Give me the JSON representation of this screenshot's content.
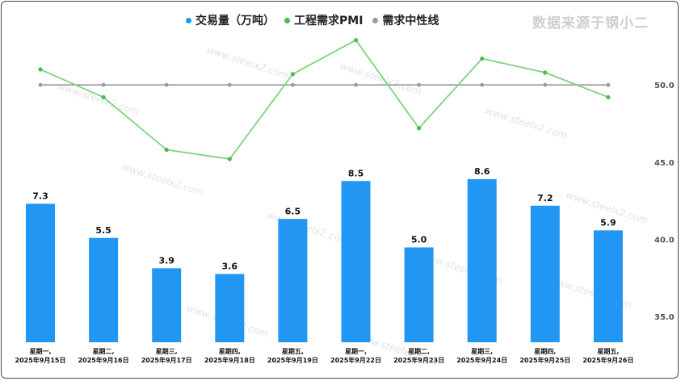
{
  "source_note": "数据来源于钢小二",
  "watermark": "www.steelx2.com",
  "legend": [
    {
      "label": "交易量（万吨）",
      "color": "#2196f3"
    },
    {
      "label": "工程需求PMI",
      "color": "#4cbb4c"
    },
    {
      "label": "需求中性线",
      "color": "#999999"
    }
  ],
  "chart_data": {
    "type": "bar",
    "categories": [
      [
        "星期一,",
        "2025年9月15日"
      ],
      [
        "星期二,",
        "2025年9月16日"
      ],
      [
        "星期三,",
        "2025年9月17日"
      ],
      [
        "星期四,",
        "2025年9月18日"
      ],
      [
        "星期五,",
        "2025年9月19日"
      ],
      [
        "星期一,",
        "2025年9月22日"
      ],
      [
        "星期二,",
        "2025年9月23日"
      ],
      [
        "星期三,",
        "2025年9月24日"
      ],
      [
        "星期四,",
        "2025年9月25日"
      ],
      [
        "星期五,",
        "2025年9月26日"
      ]
    ],
    "series": [
      {
        "name": "交易量（万吨）",
        "type": "bar",
        "values": [
          7.3,
          5.5,
          3.9,
          3.6,
          6.5,
          8.5,
          5.0,
          8.6,
          7.2,
          5.9
        ],
        "color": "#2196f3"
      },
      {
        "name": "工程需求PMI",
        "type": "line",
        "values": [
          51.0,
          49.2,
          45.8,
          45.2,
          50.7,
          52.9,
          47.2,
          51.7,
          50.8,
          49.2
        ],
        "color": "#7ed37e"
      },
      {
        "name": "需求中性线",
        "type": "line",
        "values": [
          50,
          50,
          50,
          50,
          50,
          50,
          50,
          50,
          50,
          50
        ],
        "color": "#999999"
      }
    ],
    "right_axis": {
      "ticks": [
        "35.0",
        "40.0",
        "45.0",
        "50.0"
      ],
      "tick_values": [
        35,
        40,
        45,
        50
      ],
      "range": [
        32.5,
        55
      ]
    },
    "bar_axis": {
      "range": [
        0,
        10
      ]
    },
    "grid": false,
    "legend_position": "top-center"
  }
}
